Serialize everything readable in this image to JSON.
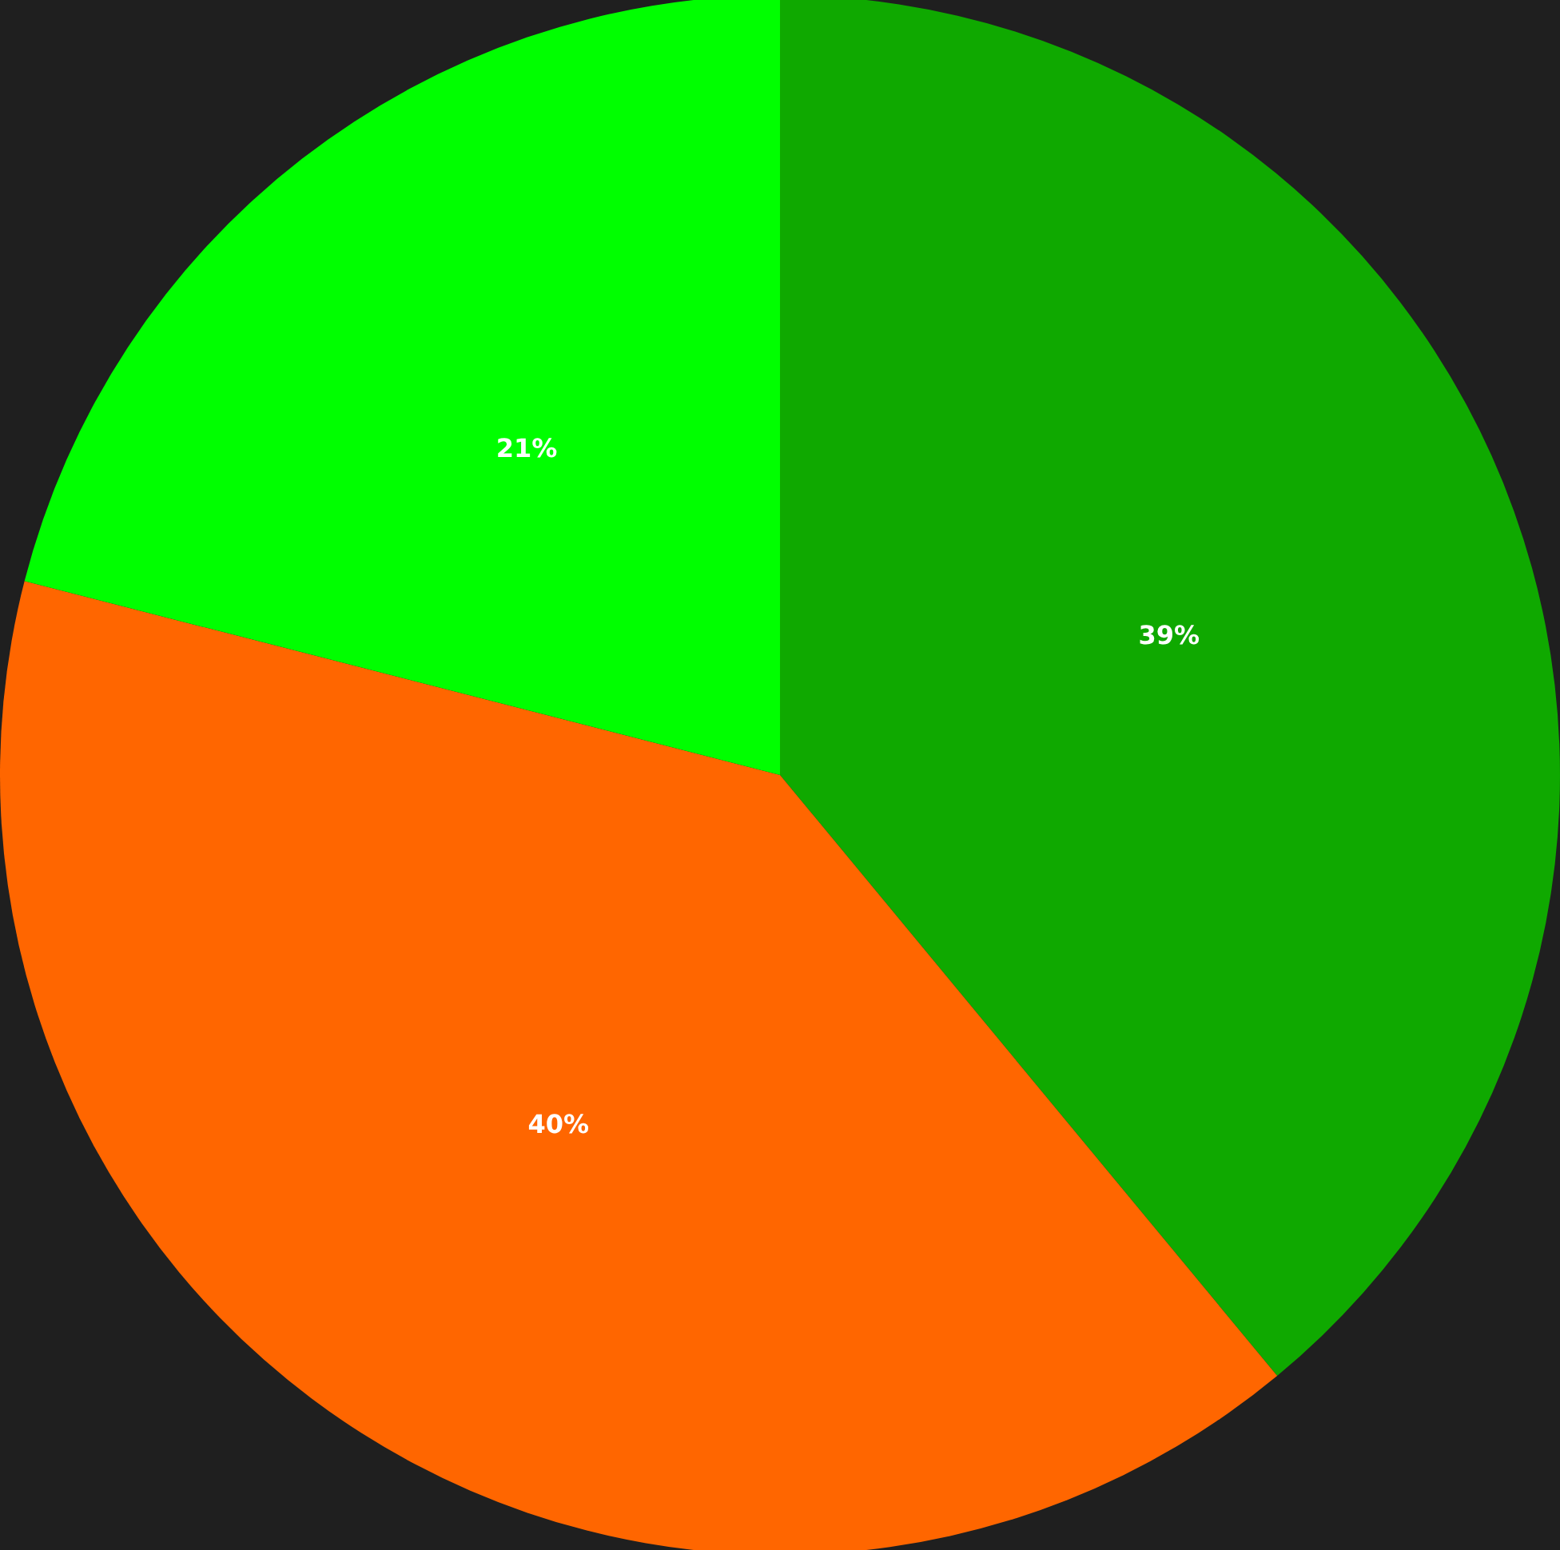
{
  "chart_data": {
    "type": "pie",
    "categories": [
      null,
      null,
      null
    ],
    "values": [
      39,
      40,
      21
    ],
    "colors": [
      "#0fa900",
      "#ff6600",
      "#00ff00"
    ],
    "value_labels": [
      "39%",
      "40%",
      "21%"
    ]
  }
}
